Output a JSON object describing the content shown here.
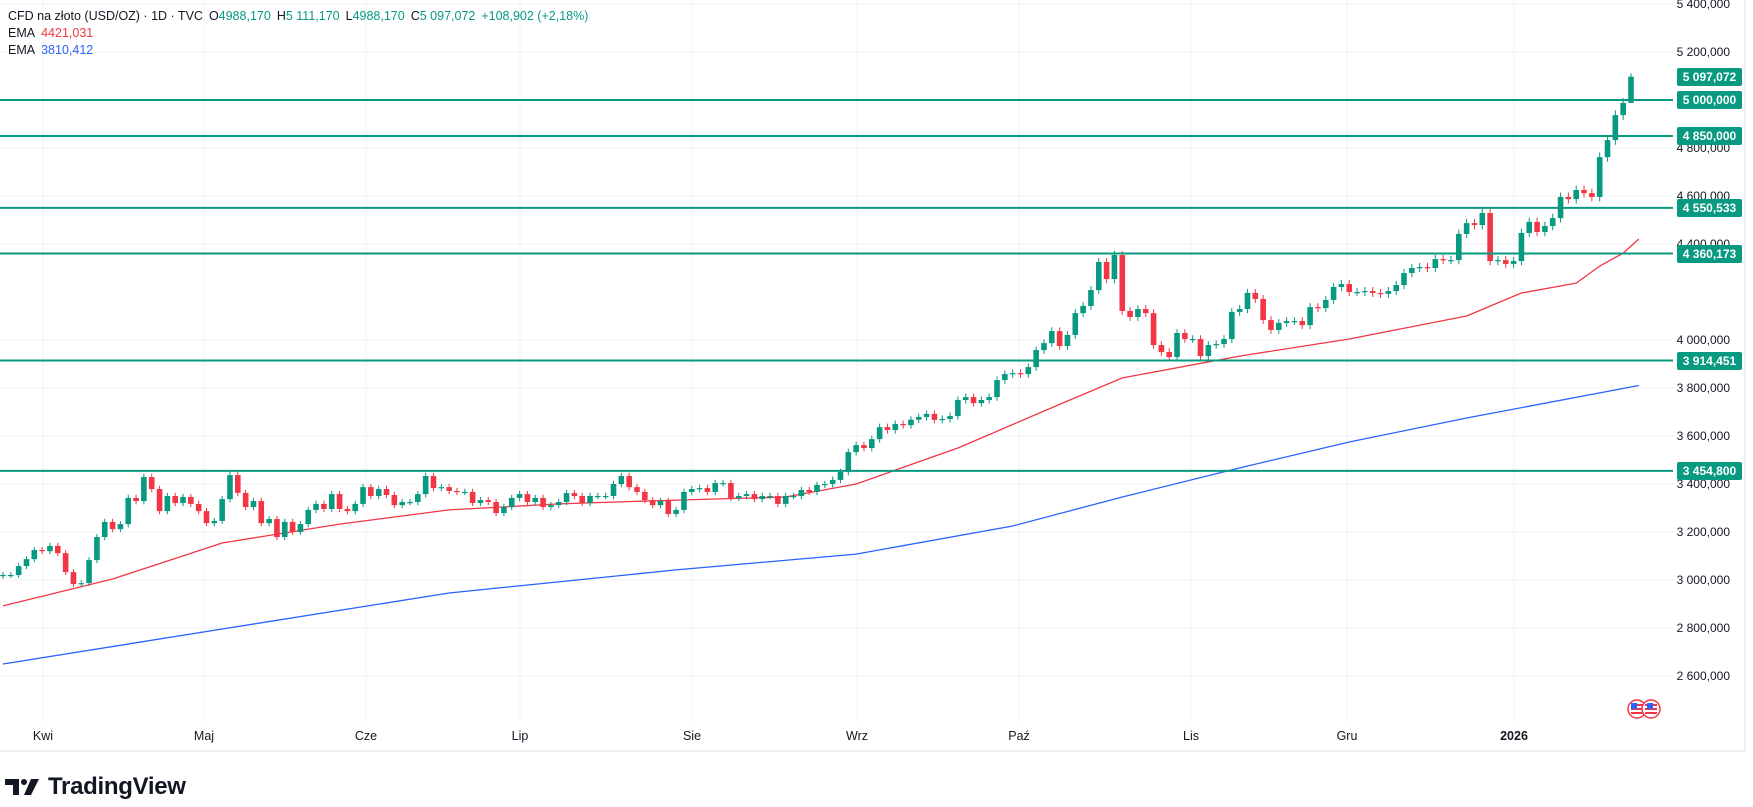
{
  "legend": {
    "symbol": "CFD na złoto (USD/OZ) · 1D · TVC",
    "open_label": "O",
    "open": "4988,170",
    "high_label": "H",
    "high": "5 111,170",
    "low_label": "L",
    "low": "4988,170",
    "close_label": "C",
    "close": "5 097,072",
    "change": "+108,902 (+2,18%)",
    "ema1_label": "EMA",
    "ema1_value": "4421,031",
    "ema2_label": "EMA",
    "ema2_value": "3810,412"
  },
  "colors": {
    "up": "#089981",
    "down": "#f23645",
    "ema1": "#f23645",
    "ema2": "#2962ff",
    "level": "#089981"
  },
  "chart_data": {
    "type": "candlestick",
    "title": "CFD na złoto (USD/OZ) · 1D · TVC",
    "ylim": [
      2500,
      5420
    ],
    "grid": true,
    "y_ticks": [
      "5 400,000",
      "5 200,000",
      "4 800,000",
      "4 600,000",
      "4 400,000",
      "4 000,000",
      "3 800,000",
      "3 600,000",
      "3 400,000",
      "3 200,000",
      "3 000,000",
      "2 800,000",
      "2 600,000"
    ],
    "y_tick_values": [
      5400,
      5200,
      4800,
      4600,
      4400,
      4000,
      3800,
      3600,
      3400,
      3200,
      3000,
      2800,
      2600
    ],
    "x_ticks": [
      "Kwi",
      "Maj",
      "Cze",
      "Lip",
      "Sie",
      "Wrz",
      "Paź",
      "Lis",
      "Gru",
      "2026"
    ],
    "last_candle": {
      "open": 4988.17,
      "high": 5111.17,
      "low": 4988.17,
      "close": 5097.072
    },
    "closes": [
      3021,
      3021,
      3058,
      3087,
      3125,
      3120,
      3142,
      3112,
      3033,
      2983,
      2987,
      3083,
      3179,
      3242,
      3212,
      3233,
      3342,
      3329,
      3429,
      3379,
      3287,
      3350,
      3321,
      3346,
      3317,
      3287,
      3237,
      3246,
      3337,
      3437,
      3363,
      3304,
      3329,
      3237,
      3254,
      3179,
      3242,
      3200,
      3233,
      3292,
      3317,
      3296,
      3358,
      3296,
      3287,
      3317,
      3387,
      3350,
      3379,
      3354,
      3312,
      3325,
      3325,
      3358,
      3433,
      3383,
      3387,
      3371,
      3367,
      3367,
      3321,
      3333,
      3325,
      3279,
      3304,
      3342,
      3358,
      3325,
      3342,
      3304,
      3312,
      3325,
      3362,
      3350,
      3321,
      3350,
      3350,
      3350,
      3400,
      3433,
      3387,
      3367,
      3333,
      3312,
      3329,
      3275,
      3292,
      3367,
      3379,
      3383,
      3367,
      3404,
      3404,
      3342,
      3350,
      3358,
      3337,
      3350,
      3350,
      3317,
      3350,
      3350,
      3375,
      3367,
      3396,
      3400,
      3417,
      3450,
      3533,
      3562,
      3550,
      3587,
      3637,
      3625,
      3650,
      3645,
      3668,
      3679,
      3692,
      3667,
      3671,
      3683,
      3750,
      3762,
      3737,
      3750,
      3762,
      3833,
      3858,
      3862,
      3858,
      3887,
      3958,
      3987,
      4037,
      3975,
      4021,
      4112,
      4142,
      4208,
      4325,
      4254,
      4354,
      4121,
      4096,
      4129,
      4112,
      3979,
      3950,
      3929,
      4029,
      4004,
      4004,
      3933,
      3979,
      3983,
      4004,
      4117,
      4129,
      4196,
      4171,
      4083,
      4042,
      4071,
      4079,
      4079,
      4062,
      4137,
      4133,
      4167,
      4221,
      4233,
      4200,
      4200,
      4204,
      4196,
      4192,
      4204,
      4229,
      4279,
      4300,
      4304,
      4300,
      4337,
      4333,
      4333,
      4442,
      4487,
      4479,
      4529,
      4329,
      4333,
      4317,
      4329,
      4446,
      4492,
      4450,
      4475,
      4508,
      4596,
      4587,
      4625,
      4612,
      4596,
      4762,
      4833,
      4937,
      4988.17,
      5097.072
    ],
    "series": [
      {
        "name": "EMA",
        "color": "#f23645",
        "points": [
          [
            0,
            2892
          ],
          [
            14,
            3004
          ],
          [
            28,
            3154
          ],
          [
            43,
            3233
          ],
          [
            57,
            3292
          ],
          [
            71,
            3317
          ],
          [
            86,
            3333
          ],
          [
            100,
            3346
          ],
          [
            109,
            3400
          ],
          [
            122,
            3550
          ],
          [
            136,
            3746
          ],
          [
            143,
            3842
          ],
          [
            158,
            3933
          ],
          [
            172,
            4004
          ],
          [
            187,
            4100
          ],
          [
            194,
            4196
          ],
          [
            201,
            4237
          ],
          [
            204,
            4308
          ],
          [
            207,
            4362
          ],
          [
            209,
            4421.031
          ]
        ]
      },
      {
        "name": "EMA",
        "color": "#2962ff",
        "points": [
          [
            0,
            2650
          ],
          [
            28,
            2796
          ],
          [
            57,
            2946
          ],
          [
            86,
            3042
          ],
          [
            109,
            3108
          ],
          [
            129,
            3225
          ],
          [
            143,
            3346
          ],
          [
            158,
            3467
          ],
          [
            172,
            3575
          ],
          [
            187,
            3675
          ],
          [
            209,
            3810.412
          ]
        ]
      }
    ],
    "levels": [
      {
        "value": 5000,
        "label": "5 000,000"
      },
      {
        "value": 4850,
        "label": "4 850,000"
      },
      {
        "value": 4550.533,
        "label": "4 550,533"
      },
      {
        "value": 4360.173,
        "label": "4 360,173"
      },
      {
        "value": 3914.451,
        "label": "3 914,451"
      },
      {
        "value": 3454.8,
        "label": "3 454,800"
      }
    ],
    "last_price_label": "5 097,072"
  },
  "branding": {
    "logo_text": "TradingView"
  }
}
